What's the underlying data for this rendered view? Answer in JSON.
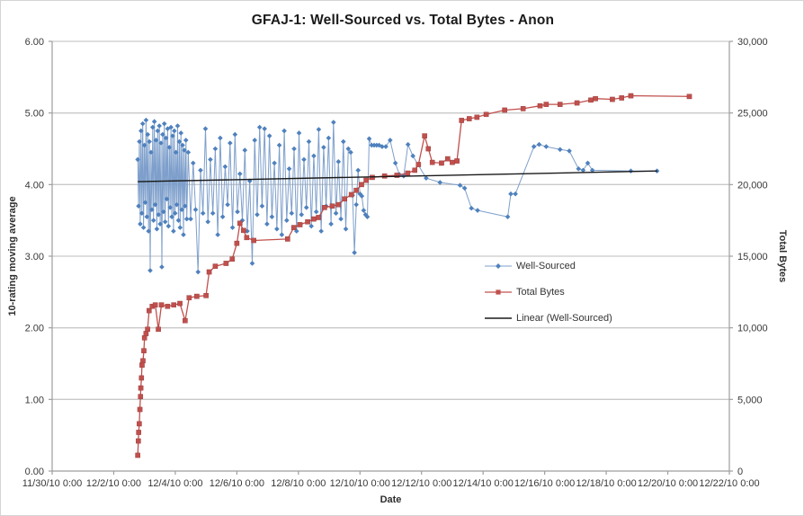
{
  "chart_data": {
    "type": "line",
    "title": "GFAJ-1: Well-Sourced vs. Total Bytes - Anon",
    "xlabel": "Date",
    "ylabel_left": "10-rating moving average",
    "ylabel_right": "Total Bytes",
    "grid": true,
    "legend_position": "middle-right",
    "x_axis": {
      "unit": "days since 11/30/10 0:00",
      "min_day": 0,
      "max_day": 22,
      "ticks": [
        {
          "day": 0,
          "label": "11/30/10 0:00"
        },
        {
          "day": 2,
          "label": "12/2/10 0:00"
        },
        {
          "day": 4,
          "label": "12/4/10 0:00"
        },
        {
          "day": 6,
          "label": "12/6/10 0:00"
        },
        {
          "day": 8,
          "label": "12/8/10 0:00"
        },
        {
          "day": 10,
          "label": "12/10/10 0:00"
        },
        {
          "day": 12,
          "label": "12/12/10 0:00"
        },
        {
          "day": 14,
          "label": "12/14/10 0:00"
        },
        {
          "day": 16,
          "label": "12/16/10 0:00"
        },
        {
          "day": 18,
          "label": "12/18/10 0:00"
        },
        {
          "day": 20,
          "label": "12/20/10 0:00"
        },
        {
          "day": 22,
          "label": "12/22/10 0:00"
        }
      ]
    },
    "y_axis_left": {
      "min": 0,
      "max": 6,
      "step": 1,
      "ticks": [
        {
          "value": 0,
          "label": "0.00"
        },
        {
          "value": 1,
          "label": "1.00"
        },
        {
          "value": 2,
          "label": "2.00"
        },
        {
          "value": 3,
          "label": "3.00"
        },
        {
          "value": 4,
          "label": "4.00"
        },
        {
          "value": 5,
          "label": "5.00"
        },
        {
          "value": 6,
          "label": "6.00"
        }
      ]
    },
    "y_axis_right": {
      "min": 0,
      "max": 30000,
      "step": 5000,
      "ticks": [
        {
          "value": 0,
          "label": "0"
        },
        {
          "value": 5000,
          "label": "5,000"
        },
        {
          "value": 10000,
          "label": "10,000"
        },
        {
          "value": 15000,
          "label": "15,000"
        },
        {
          "value": 20000,
          "label": "20,000"
        },
        {
          "value": 25000,
          "label": "25,000"
        },
        {
          "value": 30000,
          "label": "30,000"
        }
      ]
    },
    "series": [
      {
        "name": "Well-Sourced",
        "axis": "left",
        "marker": "diamond",
        "line_color": "#7E9FCB",
        "marker_color": "#4F81BD",
        "line_width": 1,
        "segments": [
          {
            "type": "uniform",
            "start_day": 2.78,
            "step_days": 0.027,
            "values": [
              4.35,
              3.7,
              4.6,
              3.45,
              4.75,
              3.6,
              4.85,
              3.4,
              4.55,
              3.75,
              4.9,
              3.55,
              4.7,
              3.35,
              4.6,
              2.8,
              4.45,
              3.65,
              4.8,
              3.5,
              4.88,
              3.72,
              4.62,
              3.38,
              4.75,
              3.58,
              4.82,
              3.45,
              4.58,
              2.85,
              4.7,
              3.62,
              4.85,
              3.48,
              4.65,
              3.8,
              4.78,
              3.42,
              4.52,
              3.68,
              4.8,
              3.55,
              4.68,
              3.35,
              4.75,
              3.6,
              4.45,
              3.72,
              4.82,
              3.5,
              4.6,
              3.4,
              4.72,
              3.65,
              4.55,
              3.3,
              4.48,
              3.7,
              4.62,
              3.52
            ]
          },
          {
            "type": "uniform",
            "start_day": 4.42,
            "step_days": 0.08,
            "values": [
              4.45,
              3.52,
              4.3,
              3.65,
              2.78,
              4.2,
              3.6,
              4.78,
              3.48,
              4.35,
              3.6,
              4.5,
              3.3,
              4.65,
              3.55,
              4.25,
              3.72,
              4.58,
              3.4,
              4.7,
              3.62,
              4.15,
              3.5,
              4.48,
              3.35,
              4.05,
              2.9,
              4.62,
              3.58,
              4.8,
              3.7,
              4.78,
              3.45,
              4.68,
              3.55,
              4.3,
              3.38,
              4.55,
              3.3,
              4.75,
              3.5,
              4.22,
              3.6,
              4.5,
              3.35,
              4.72,
              3.58,
              4.35,
              3.68,
              4.6,
              3.42,
              4.4,
              3.62,
              4.77,
              3.35,
              4.52,
              3.7,
              4.65,
              3.45,
              4.87,
              3.6,
              4.32,
              3.52,
              4.6,
              3.38,
              4.5
            ]
          },
          {
            "type": "points",
            "points": [
              [
                9.7,
                4.45
              ],
              [
                9.76,
                3.85
              ],
              [
                9.82,
                3.05
              ],
              [
                9.88,
                3.72
              ],
              [
                9.94,
                4.2
              ],
              [
                10.0,
                3.87
              ],
              [
                10.06,
                3.84
              ],
              [
                10.12,
                3.64
              ],
              [
                10.18,
                3.58
              ],
              [
                10.24,
                3.55
              ],
              [
                10.3,
                4.64
              ],
              [
                10.38,
                4.55
              ],
              [
                10.46,
                4.55
              ],
              [
                10.54,
                4.55
              ],
              [
                10.62,
                4.55
              ],
              [
                10.72,
                4.53
              ],
              [
                10.84,
                4.53
              ],
              [
                10.98,
                4.62
              ],
              [
                11.15,
                4.3
              ],
              [
                11.28,
                4.14
              ],
              [
                11.42,
                4.12
              ],
              [
                11.56,
                4.56
              ],
              [
                11.72,
                4.4
              ],
              [
                12.15,
                4.09
              ],
              [
                12.6,
                4.03
              ],
              [
                13.25,
                3.99
              ],
              [
                13.4,
                3.95
              ],
              [
                13.62,
                3.67
              ],
              [
                13.82,
                3.64
              ],
              [
                14.8,
                3.55
              ],
              [
                14.9,
                3.87
              ],
              [
                15.05,
                3.87
              ],
              [
                15.65,
                4.53
              ],
              [
                15.82,
                4.56
              ],
              [
                16.05,
                4.53
              ],
              [
                16.5,
                4.49
              ],
              [
                16.8,
                4.47
              ],
              [
                17.1,
                4.22
              ],
              [
                17.25,
                4.2
              ],
              [
                17.4,
                4.3
              ],
              [
                17.55,
                4.2
              ],
              [
                18.8,
                4.19
              ],
              [
                19.65,
                4.19
              ]
            ]
          }
        ]
      },
      {
        "name": "Total Bytes",
        "axis": "right",
        "marker": "square",
        "line_color": "#C0504D",
        "marker_color": "#C0504D",
        "line_width": 1.3,
        "segments": [
          {
            "type": "points",
            "points": [
              [
                2.78,
                1100
              ],
              [
                2.8,
                2100
              ],
              [
                2.81,
                2700
              ],
              [
                2.83,
                3300
              ],
              [
                2.85,
                4300
              ],
              [
                2.87,
                5200
              ],
              [
                2.88,
                5800
              ],
              [
                2.9,
                6500
              ],
              [
                2.92,
                7400
              ],
              [
                2.95,
                7700
              ],
              [
                2.98,
                8400
              ],
              [
                3.0,
                9300
              ],
              [
                3.05,
                9600
              ],
              [
                3.1,
                9900
              ],
              [
                3.15,
                11200
              ],
              [
                3.25,
                11500
              ],
              [
                3.35,
                11600
              ],
              [
                3.45,
                9900
              ],
              [
                3.55,
                11600
              ],
              [
                3.75,
                11500
              ],
              [
                3.95,
                11600
              ],
              [
                4.15,
                11700
              ],
              [
                4.32,
                10500
              ],
              [
                4.45,
                12100
              ],
              [
                4.7,
                12200
              ],
              [
                5.0,
                12250
              ],
              [
                5.1,
                13900
              ],
              [
                5.3,
                14300
              ],
              [
                5.65,
                14500
              ],
              [
                5.85,
                14800
              ],
              [
                6.0,
                15900
              ],
              [
                6.1,
                17300
              ],
              [
                6.22,
                16800
              ],
              [
                6.32,
                16300
              ],
              [
                6.55,
                16100
              ],
              [
                7.65,
                16200
              ],
              [
                7.85,
                17000
              ],
              [
                8.05,
                17200
              ],
              [
                8.3,
                17400
              ],
              [
                8.5,
                17600
              ],
              [
                8.65,
                17700
              ],
              [
                8.85,
                18400
              ],
              [
                9.1,
                18500
              ],
              [
                9.3,
                18600
              ],
              [
                9.5,
                19000
              ],
              [
                9.72,
                19300
              ],
              [
                9.88,
                19600
              ],
              [
                10.05,
                20000
              ],
              [
                10.2,
                20300
              ],
              [
                10.4,
                20500
              ],
              [
                10.8,
                20600
              ],
              [
                11.2,
                20650
              ],
              [
                11.55,
                20800
              ],
              [
                11.78,
                21000
              ],
              [
                11.9,
                21400
              ],
              [
                12.1,
                23400
              ],
              [
                12.22,
                22500
              ],
              [
                12.35,
                21550
              ],
              [
                12.65,
                21500
              ],
              [
                12.85,
                21800
              ],
              [
                13.0,
                21550
              ],
              [
                13.15,
                21650
              ],
              [
                13.3,
                24480
              ],
              [
                13.55,
                24600
              ],
              [
                13.8,
                24700
              ],
              [
                14.1,
                24900
              ],
              [
                14.7,
                25200
              ],
              [
                15.3,
                25300
              ],
              [
                15.85,
                25500
              ],
              [
                16.05,
                25600
              ],
              [
                16.5,
                25600
              ],
              [
                17.05,
                25700
              ],
              [
                17.5,
                25900
              ],
              [
                17.65,
                26000
              ],
              [
                18.2,
                25950
              ],
              [
                18.5,
                26050
              ],
              [
                18.8,
                26200
              ],
              [
                20.7,
                26150
              ]
            ]
          }
        ]
      },
      {
        "name": "Linear (Well-Sourced)",
        "axis": "left",
        "marker": "none",
        "line_color": "#1A1A1A",
        "marker_color": "#1A1A1A",
        "line_width": 1.4,
        "segments": [
          {
            "type": "points",
            "points": [
              [
                2.78,
                4.04
              ],
              [
                19.66,
                4.19
              ]
            ]
          }
        ]
      }
    ],
    "colors": {
      "background": "#FFFFFF",
      "border": "#D4D4D4",
      "gridline": "#C9C9C9",
      "axis_line": "#9E9E9E",
      "tick_text": "#383838",
      "title_text": "#1A1A1A",
      "well_sourced": "#4F81BD",
      "total_bytes": "#C0504D",
      "trendline": "#1A1A1A"
    }
  }
}
